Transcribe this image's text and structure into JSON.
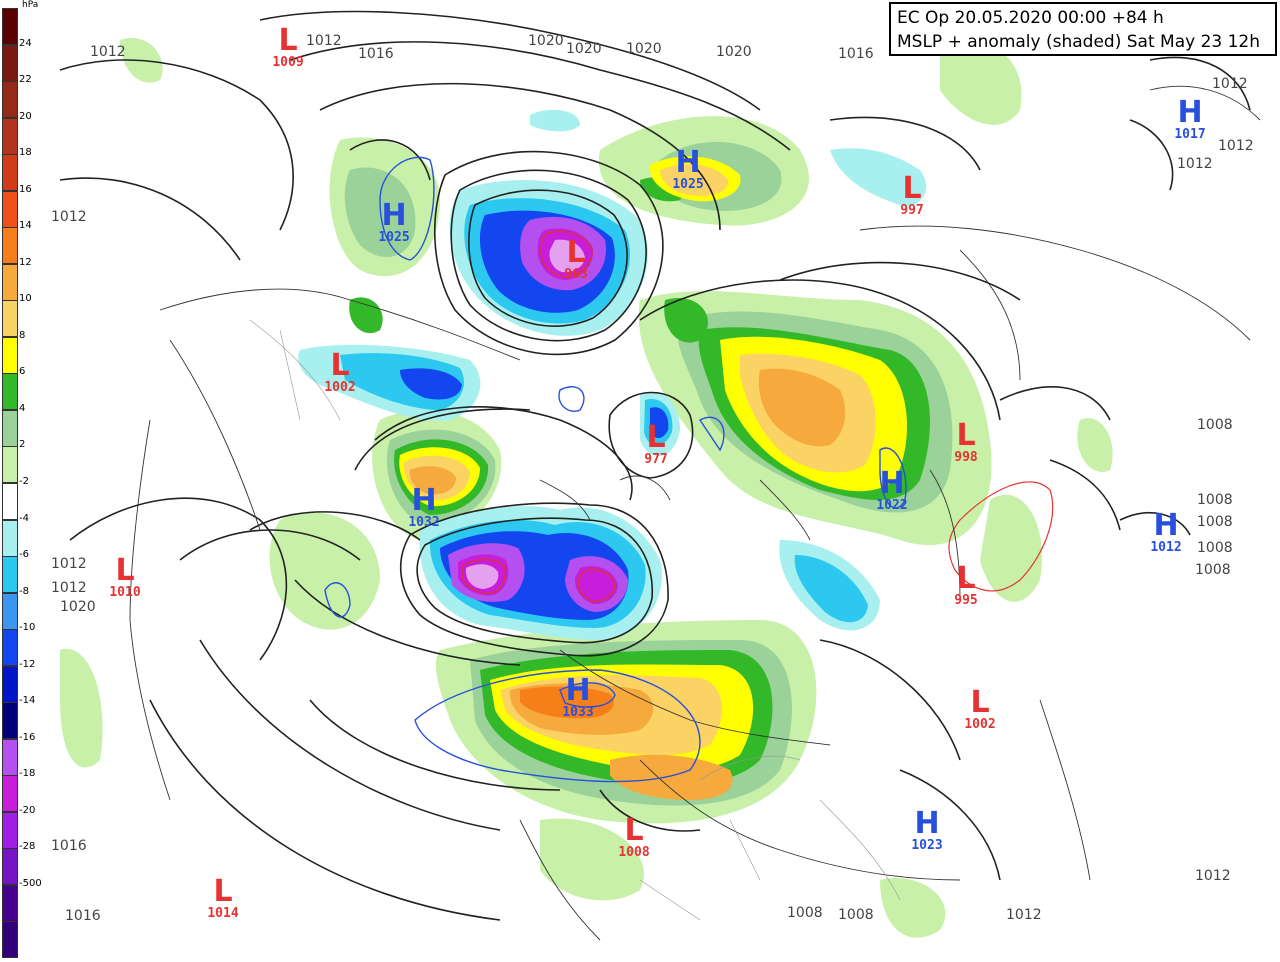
{
  "header": {
    "line1": "EC Op 20.05.2020 00:00 +84 h",
    "line2": "MSLP + anomaly (shaded) Sat May 23 12h"
  },
  "legend": {
    "unit": "hPa",
    "ticks": [
      "24",
      "22",
      "20",
      "18",
      "16",
      "14",
      "12",
      "10",
      "8",
      "6",
      "4",
      "2",
      "-2",
      "-4",
      "-6",
      "-8",
      "-10",
      "-12",
      "-14",
      "-16",
      "-18",
      "-20",
      "-28",
      "-500"
    ],
    "colors": [
      "#5a0000",
      "#7a1a10",
      "#962a18",
      "#b3341c",
      "#d23a1c",
      "#f0501a",
      "#f77f1a",
      "#f6a93c",
      "#fbd264",
      "#ffff00",
      "#33b82a",
      "#9ad29a",
      "#c8f0a8",
      "#ffffff",
      "#a8f0f0",
      "#2cc8f0",
      "#3a96f0",
      "#1446f0",
      "#0014c8",
      "#00007a",
      "#b450f0",
      "#c81edc",
      "#a01ee6",
      "#7814c8",
      "#46008c",
      "#320078"
    ]
  },
  "centers": [
    {
      "type": "L",
      "value": "1009",
      "color": "#e63232"
    },
    {
      "type": "H",
      "value": "1025",
      "color": "#2850dc"
    },
    {
      "type": "L",
      "value": "963",
      "color": "#e63232"
    },
    {
      "type": "H",
      "value": "1025",
      "color": "#2850dc"
    },
    {
      "type": "L",
      "value": "997",
      "color": "#e63232"
    },
    {
      "type": "H",
      "value": "1017",
      "color": "#2850dc"
    },
    {
      "type": "L",
      "value": "1002",
      "color": "#e63232"
    },
    {
      "type": "L",
      "value": "977",
      "color": "#e63232"
    },
    {
      "type": "H",
      "value": "1032",
      "color": "#2850dc"
    },
    {
      "type": "L",
      "value": "998",
      "color": "#e63232"
    },
    {
      "type": "H",
      "value": "1022",
      "color": "#2850dc"
    },
    {
      "type": "H",
      "value": "1012",
      "color": "#2850dc"
    },
    {
      "type": "L",
      "value": "1010",
      "color": "#e63232"
    },
    {
      "type": "L",
      "value": "995",
      "color": "#e63232"
    },
    {
      "type": "H",
      "value": "1033",
      "color": "#2850dc"
    },
    {
      "type": "L",
      "value": "1002",
      "color": "#e63232"
    },
    {
      "type": "L",
      "value": "1008",
      "color": "#e63232"
    },
    {
      "type": "H",
      "value": "1023",
      "color": "#2850dc"
    },
    {
      "type": "L",
      "value": "1014",
      "color": "#e63232"
    }
  ],
  "isobar_labels": [
    "1012",
    "1012",
    "1016",
    "1020",
    "1020",
    "1020",
    "1020",
    "1016",
    "1012",
    "1012",
    "1012",
    "1012",
    "1008",
    "1008",
    "1008",
    "1008",
    "1008",
    "1012",
    "1012",
    "1020",
    "1016",
    "1016",
    "1008",
    "1008",
    "1012",
    "1012"
  ]
}
